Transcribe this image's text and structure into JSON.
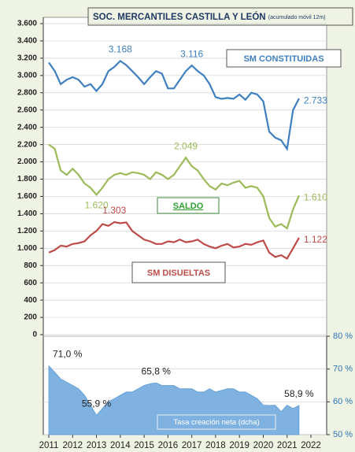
{
  "chart_data": [
    {
      "type": "line",
      "title": "SOC. MERCANTILES  CASTILLA Y LEÓN",
      "subtitle": "(acumulado móvil 12m)",
      "xlim": [
        2011,
        2022
      ],
      "x": [
        2011,
        2011.25,
        2011.5,
        2011.75,
        2012,
        2012.25,
        2012.5,
        2012.75,
        2013,
        2013.25,
        2013.5,
        2013.75,
        2014,
        2014.25,
        2014.5,
        2014.75,
        2015,
        2015.25,
        2015.5,
        2015.75,
        2016,
        2016.25,
        2016.5,
        2016.75,
        2017,
        2017.25,
        2017.5,
        2017.75,
        2018,
        2018.25,
        2018.5,
        2018.75,
        2019,
        2019.25,
        2019.5,
        2019.75,
        2020,
        2020.25,
        2020.5,
        2020.75,
        2021,
        2021.25,
        2021.5
      ],
      "ylim": [
        0,
        3600
      ],
      "yticks": [
        {
          "value": 0,
          "label": "0"
        },
        {
          "value": 200,
          "label": "200"
        },
        {
          "value": 400,
          "label": "400"
        },
        {
          "value": 600,
          "label": "600"
        },
        {
          "value": 800,
          "label": "800"
        },
        {
          "value": 1000,
          "label": "1.000"
        },
        {
          "value": 1200,
          "label": "1.200"
        },
        {
          "value": 1400,
          "label": "1.400"
        },
        {
          "value": 1600,
          "label": "1.600"
        },
        {
          "value": 1800,
          "label": "1.800"
        },
        {
          "value": 2000,
          "label": "2.000"
        },
        {
          "value": 2200,
          "label": "2.200"
        },
        {
          "value": 2400,
          "label": "2.400"
        },
        {
          "value": 2600,
          "label": "2.600"
        },
        {
          "value": 2800,
          "label": "2.800"
        },
        {
          "value": 3000,
          "label": "3.000"
        },
        {
          "value": 3200,
          "label": "3.200"
        },
        {
          "value": 3400,
          "label": "3.400"
        },
        {
          "value": 3600,
          "label": "3.600"
        }
      ],
      "grid": true,
      "series": [
        {
          "name": "SM CONSTITUIDAS",
          "color": "#3f7fbf",
          "values": [
            3150,
            3050,
            2900,
            2950,
            2980,
            2950,
            2870,
            2900,
            2820,
            2900,
            3050,
            3100,
            3168,
            3120,
            3050,
            2980,
            2900,
            2980,
            3050,
            3020,
            2850,
            2850,
            2950,
            3050,
            3116,
            3050,
            3000,
            2900,
            2750,
            2730,
            2740,
            2730,
            2780,
            2720,
            2800,
            2780,
            2700,
            2350,
            2280,
            2250,
            2150,
            2600,
            2733
          ],
          "value_labels": [
            null,
            null,
            null,
            null,
            null,
            null,
            null,
            null,
            null,
            null,
            null,
            null,
            "3.168",
            null,
            null,
            null,
            null,
            null,
            null,
            null,
            null,
            null,
            null,
            null,
            "3.116",
            null,
            null,
            null,
            null,
            null,
            null,
            null,
            null,
            null,
            null,
            null,
            null,
            null,
            null,
            null,
            null,
            null,
            "2.733"
          ]
        },
        {
          "name": "SALDO",
          "color": "#9bbb59",
          "values": [
            2200,
            2150,
            1900,
            1850,
            1920,
            1850,
            1750,
            1700,
            1620,
            1700,
            1800,
            1850,
            1870,
            1850,
            1880,
            1870,
            1850,
            1800,
            1880,
            1850,
            1800,
            1850,
            1950,
            2049,
            1950,
            1900,
            1800,
            1720,
            1680,
            1750,
            1730,
            1760,
            1780,
            1700,
            1720,
            1700,
            1600,
            1350,
            1250,
            1280,
            1230,
            1450,
            1610
          ],
          "value_labels": [
            null,
            null,
            null,
            null,
            null,
            null,
            null,
            null,
            "1.620",
            null,
            null,
            null,
            null,
            null,
            null,
            null,
            null,
            null,
            null,
            null,
            null,
            null,
            null,
            "2.049",
            null,
            null,
            null,
            null,
            null,
            null,
            null,
            null,
            null,
            null,
            null,
            null,
            null,
            null,
            null,
            null,
            null,
            null,
            "1.610"
          ]
        },
        {
          "name": "SM DISUELTAS",
          "color": "#be4b48",
          "values": [
            950,
            980,
            1030,
            1020,
            1050,
            1060,
            1080,
            1150,
            1200,
            1280,
            1260,
            1303,
            1290,
            1300,
            1200,
            1150,
            1100,
            1080,
            1050,
            1050,
            1080,
            1070,
            1100,
            1070,
            1080,
            1100,
            1050,
            1020,
            1000,
            1030,
            1050,
            1010,
            1020,
            1050,
            1040,
            1070,
            1090,
            950,
            900,
            920,
            880,
            1000,
            1122
          ],
          "value_labels": [
            null,
            null,
            null,
            null,
            null,
            null,
            null,
            null,
            null,
            null,
            null,
            "1.303",
            null,
            null,
            null,
            null,
            null,
            null,
            null,
            null,
            null,
            null,
            null,
            null,
            null,
            null,
            null,
            null,
            null,
            null,
            null,
            null,
            null,
            null,
            null,
            null,
            null,
            null,
            null,
            null,
            null,
            null,
            "1.122"
          ]
        }
      ]
    },
    {
      "type": "area",
      "xlim": [
        2011,
        2022
      ],
      "xticks": [
        2011,
        2012,
        2013,
        2014,
        2015,
        2016,
        2017,
        2018,
        2019,
        2020,
        2021,
        2022
      ],
      "x": [
        2011,
        2011.25,
        2011.5,
        2011.75,
        2012,
        2012.25,
        2012.5,
        2012.75,
        2013,
        2013.25,
        2013.5,
        2013.75,
        2014,
        2014.25,
        2014.5,
        2014.75,
        2015,
        2015.25,
        2015.5,
        2015.75,
        2016,
        2016.25,
        2016.5,
        2016.75,
        2017,
        2017.25,
        2017.5,
        2017.75,
        2018,
        2018.25,
        2018.5,
        2018.75,
        2019,
        2019.25,
        2019.5,
        2019.75,
        2020,
        2020.25,
        2020.5,
        2020.75,
        2021,
        2021.25,
        2021.5
      ],
      "y2lim": [
        50,
        80
      ],
      "y2ticks": [
        {
          "value": 50,
          "label": "50 %"
        },
        {
          "value": 60,
          "label": "60 %"
        },
        {
          "value": 70,
          "label": "70 %"
        },
        {
          "value": 80,
          "label": "80 %"
        }
      ],
      "grid": true,
      "series": [
        {
          "name": "Tasa creación  neta (dcha)",
          "color": "#7fb2e0",
          "axis": "y2",
          "values": [
            71,
            69,
            67,
            66,
            65,
            64,
            62,
            59,
            55.9,
            58,
            60,
            61,
            62,
            63,
            63,
            64,
            65,
            65.5,
            65.8,
            65,
            65,
            65,
            64,
            64,
            64,
            63,
            63,
            64,
            63,
            63.5,
            64,
            64,
            63,
            63,
            62,
            61,
            59,
            58.9,
            59,
            57,
            59,
            58,
            58.9
          ],
          "value_labels": [
            "71,0 %",
            null,
            null,
            null,
            null,
            null,
            null,
            null,
            "55,9 %",
            null,
            null,
            null,
            null,
            null,
            null,
            null,
            null,
            null,
            "65,8 %",
            null,
            null,
            null,
            null,
            null,
            null,
            null,
            null,
            null,
            null,
            null,
            null,
            null,
            null,
            null,
            null,
            null,
            null,
            null,
            null,
            null,
            null,
            null,
            "58,9 %"
          ]
        }
      ]
    }
  ]
}
